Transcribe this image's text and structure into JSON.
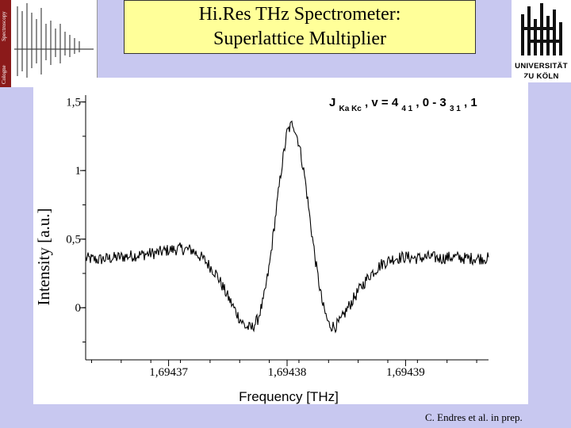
{
  "header": {
    "title_line1": "Hi.Res THz Spectrometer:",
    "title_line2": "Superlattice Multiplier"
  },
  "logo": {
    "line1": "UNIVERSITÄT",
    "line2": "ZU KÖLN"
  },
  "thumbnail": {
    "text_top": "Spectroscopy",
    "text_bottom": "Cologne",
    "accent_color": "#8b1a1a"
  },
  "footer": {
    "citation": "C. Endres et al. in prep."
  },
  "chart_data": {
    "type": "line",
    "annotation_base": "J",
    "annotation_sub1": "Ka Kc",
    "annotation_mid1": ", v = 4",
    "annotation_sub2": "4 1",
    "annotation_mid2": ", 0 - 3",
    "annotation_sub3": "3 1",
    "annotation_end": ", 1",
    "xlabel": "Frequency [THz]",
    "ylabel": "Intensity [a.u.]",
    "xlim": [
      1.694363,
      1.694397
    ],
    "ylim": [
      -0.38,
      1.55
    ],
    "xticks": [
      {
        "value": 1.69437,
        "label": "1,69437"
      },
      {
        "value": 1.69438,
        "label": "1,69438"
      },
      {
        "value": 1.69439,
        "label": "1,69439"
      }
    ],
    "yticks": [
      {
        "value": 0,
        "label": "0"
      },
      {
        "value": 0.5,
        "label": "0,5"
      },
      {
        "value": 1,
        "label": "1"
      },
      {
        "value": 1.5,
        "label": "1,5"
      }
    ],
    "grid": false,
    "line_color": "#000000",
    "series": [
      {
        "x": [
          1.694363,
          1.694364,
          1.694365,
          1.694366,
          1.694367,
          1.694368,
          1.694369,
          1.69437,
          1.694371,
          1.694372,
          1.694373,
          1.694374,
          1.694375,
          1.694376,
          1.6943765,
          1.694377,
          1.6943775,
          1.694378,
          1.6943785,
          1.694379,
          1.6943795,
          1.69438,
          1.6943805,
          1.694381,
          1.6943815,
          1.694382,
          1.6943825,
          1.694383,
          1.6943835,
          1.694384,
          1.6943845,
          1.694385,
          1.694386,
          1.694387,
          1.694388,
          1.694389,
          1.69439,
          1.694391,
          1.694392,
          1.694393,
          1.694394,
          1.694395,
          1.694396,
          1.694397
        ],
        "values": [
          0.36,
          0.35,
          0.36,
          0.37,
          0.38,
          0.39,
          0.4,
          0.42,
          0.43,
          0.42,
          0.35,
          0.25,
          0.08,
          -0.08,
          -0.14,
          -0.15,
          -0.09,
          0.05,
          0.3,
          0.65,
          1.0,
          1.28,
          1.35,
          1.2,
          0.95,
          0.6,
          0.28,
          0.02,
          -0.12,
          -0.14,
          -0.1,
          -0.02,
          0.12,
          0.24,
          0.32,
          0.36,
          0.37,
          0.36,
          0.37,
          0.36,
          0.37,
          0.36,
          0.36,
          0.36
        ]
      }
    ]
  }
}
